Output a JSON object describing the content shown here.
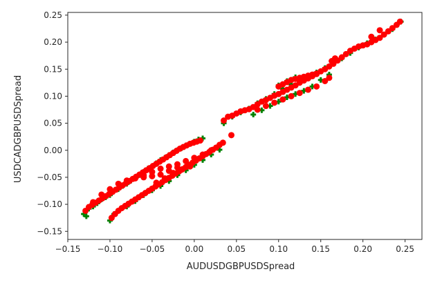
{
  "chart_data": {
    "type": "scatter",
    "title": "",
    "xlabel": "AUDUSDGBPUSDSpread",
    "ylabel": "USDCADGBPUSDSpread",
    "xlim": [
      -0.15,
      0.27
    ],
    "ylim": [
      -0.165,
      0.255
    ],
    "xticks": [
      -0.15,
      -0.1,
      -0.05,
      0.0,
      0.05,
      0.1,
      0.15,
      0.2,
      0.25
    ],
    "yticks": [
      -0.15,
      -0.1,
      -0.05,
      0.0,
      0.05,
      0.1,
      0.15,
      0.2,
      0.25
    ],
    "xtick_labels": [
      "−0.15",
      "−0.10",
      "−0.05",
      "0.00",
      "0.05",
      "0.10",
      "0.15",
      "0.20",
      "0.25"
    ],
    "ytick_labels": [
      "−0.15",
      "−0.10",
      "−0.05",
      "0.00",
      "0.05",
      "0.10",
      "0.15",
      "0.20",
      "0.25"
    ],
    "grid": false,
    "legend": "none",
    "series": [
      {
        "color": "#008000",
        "marker": "plus",
        "points": [
          [
            -0.131,
            -0.118
          ],
          [
            -0.128,
            -0.122
          ],
          [
            -0.125,
            -0.108
          ],
          [
            -0.12,
            -0.104
          ],
          [
            -0.115,
            -0.098
          ],
          [
            -0.11,
            -0.091
          ],
          [
            -0.105,
            -0.087
          ],
          [
            -0.1,
            -0.083
          ],
          [
            -0.095,
            -0.075
          ],
          [
            -0.09,
            -0.072
          ],
          [
            -0.085,
            -0.066
          ],
          [
            -0.08,
            -0.062
          ],
          [
            -0.075,
            -0.056
          ],
          [
            -0.07,
            -0.05
          ],
          [
            -0.065,
            -0.046
          ],
          [
            -0.06,
            -0.04
          ],
          [
            -0.055,
            -0.034
          ],
          [
            -0.05,
            -0.03
          ],
          [
            -0.045,
            -0.024
          ],
          [
            -0.04,
            -0.018
          ],
          [
            -0.035,
            -0.014
          ],
          [
            -0.03,
            -0.009
          ],
          [
            -0.025,
            -0.004
          ],
          [
            -0.02,
            0.0
          ],
          [
            -0.015,
            0.004
          ],
          [
            -0.01,
            0.009
          ],
          [
            -0.005,
            0.012
          ],
          [
            0.0,
            0.016
          ],
          [
            0.005,
            0.02
          ],
          [
            0.01,
            0.022
          ],
          [
            -0.1,
            -0.13
          ],
          [
            -0.095,
            -0.118
          ],
          [
            -0.09,
            -0.112
          ],
          [
            -0.08,
            -0.104
          ],
          [
            -0.07,
            -0.094
          ],
          [
            -0.06,
            -0.083
          ],
          [
            -0.05,
            -0.074
          ],
          [
            -0.04,
            -0.066
          ],
          [
            -0.03,
            -0.057
          ],
          [
            -0.02,
            -0.046
          ],
          [
            -0.01,
            -0.037
          ],
          [
            0.0,
            -0.027
          ],
          [
            0.01,
            -0.018
          ],
          [
            0.02,
            -0.008
          ],
          [
            0.03,
            0.001
          ],
          [
            0.035,
            0.05
          ],
          [
            0.045,
            0.062
          ],
          [
            0.055,
            0.07
          ],
          [
            0.065,
            0.077
          ],
          [
            0.075,
            0.087
          ],
          [
            0.085,
            0.095
          ],
          [
            0.095,
            0.104
          ],
          [
            0.105,
            0.114
          ],
          [
            0.115,
            0.122
          ],
          [
            0.125,
            0.13
          ],
          [
            0.135,
            0.138
          ],
          [
            0.145,
            0.144
          ],
          [
            0.155,
            0.152
          ],
          [
            0.165,
            0.16
          ],
          [
            0.175,
            0.17
          ],
          [
            0.185,
            0.18
          ],
          [
            0.195,
            0.19
          ],
          [
            0.205,
            0.198
          ],
          [
            0.215,
            0.205
          ],
          [
            0.225,
            0.214
          ],
          [
            0.235,
            0.224
          ],
          [
            0.245,
            0.238
          ],
          [
            0.1,
            0.12
          ],
          [
            0.11,
            0.128
          ],
          [
            0.12,
            0.135
          ],
          [
            0.07,
            0.066
          ],
          [
            0.08,
            0.074
          ],
          [
            0.09,
            0.082
          ],
          [
            0.1,
            0.09
          ],
          [
            0.11,
            0.098
          ],
          [
            0.12,
            0.104
          ],
          [
            0.13,
            0.11
          ],
          [
            0.14,
            0.118
          ],
          [
            0.15,
            0.13
          ],
          [
            0.16,
            0.14
          ]
        ]
      },
      {
        "color": "#ff0000",
        "marker": "dot",
        "points": [
          [
            -0.129,
            -0.112
          ],
          [
            -0.125,
            -0.105
          ],
          [
            -0.121,
            -0.101
          ],
          [
            -0.117,
            -0.097
          ],
          [
            -0.113,
            -0.093
          ],
          [
            -0.109,
            -0.089
          ],
          [
            -0.105,
            -0.085
          ],
          [
            -0.101,
            -0.081
          ],
          [
            -0.097,
            -0.077
          ],
          [
            -0.093,
            -0.073
          ],
          [
            -0.089,
            -0.069
          ],
          [
            -0.085,
            -0.065
          ],
          [
            -0.081,
            -0.061
          ],
          [
            -0.077,
            -0.057
          ],
          [
            -0.073,
            -0.053
          ],
          [
            -0.069,
            -0.049
          ],
          [
            -0.065,
            -0.045
          ],
          [
            -0.061,
            -0.041
          ],
          [
            -0.057,
            -0.037
          ],
          [
            -0.053,
            -0.033
          ],
          [
            -0.049,
            -0.029
          ],
          [
            -0.045,
            -0.025
          ],
          [
            -0.041,
            -0.021
          ],
          [
            -0.037,
            -0.017
          ],
          [
            -0.033,
            -0.013
          ],
          [
            -0.029,
            -0.009
          ],
          [
            -0.025,
            -0.005
          ],
          [
            -0.021,
            -0.001
          ],
          [
            -0.017,
            0.003
          ],
          [
            -0.013,
            0.006
          ],
          [
            -0.009,
            0.009
          ],
          [
            -0.005,
            0.012
          ],
          [
            -0.001,
            0.014
          ],
          [
            0.003,
            0.016
          ],
          [
            0.007,
            0.018
          ],
          [
            -0.12,
            -0.096
          ],
          [
            -0.11,
            -0.082
          ],
          [
            -0.1,
            -0.072
          ],
          [
            -0.09,
            -0.062
          ],
          [
            -0.08,
            -0.056
          ],
          [
            -0.07,
            -0.052
          ],
          [
            -0.06,
            -0.046
          ],
          [
            -0.05,
            -0.04
          ],
          [
            -0.04,
            -0.034
          ],
          [
            -0.03,
            -0.03
          ],
          [
            -0.02,
            -0.026
          ],
          [
            -0.01,
            -0.02
          ],
          [
            0.0,
            -0.014
          ],
          [
            0.01,
            -0.008
          ],
          [
            0.02,
            0.0
          ],
          [
            -0.098,
            -0.125
          ],
          [
            -0.094,
            -0.118
          ],
          [
            -0.09,
            -0.112
          ],
          [
            -0.086,
            -0.107
          ],
          [
            -0.082,
            -0.103
          ],
          [
            -0.078,
            -0.099
          ],
          [
            -0.074,
            -0.095
          ],
          [
            -0.07,
            -0.091
          ],
          [
            -0.066,
            -0.087
          ],
          [
            -0.062,
            -0.083
          ],
          [
            -0.058,
            -0.079
          ],
          [
            -0.054,
            -0.075
          ],
          [
            -0.05,
            -0.071
          ],
          [
            -0.046,
            -0.067
          ],
          [
            -0.042,
            -0.063
          ],
          [
            -0.038,
            -0.059
          ],
          [
            -0.034,
            -0.055
          ],
          [
            -0.03,
            -0.051
          ],
          [
            -0.026,
            -0.047
          ],
          [
            -0.022,
            -0.043
          ],
          [
            -0.018,
            -0.039
          ],
          [
            -0.014,
            -0.035
          ],
          [
            -0.01,
            -0.031
          ],
          [
            -0.006,
            -0.027
          ],
          [
            -0.002,
            -0.023
          ],
          [
            0.002,
            -0.019
          ],
          [
            0.006,
            -0.015
          ],
          [
            0.01,
            -0.011
          ],
          [
            0.014,
            -0.007
          ],
          [
            0.018,
            -0.003
          ],
          [
            0.022,
            0.001
          ],
          [
            0.026,
            0.005
          ],
          [
            0.03,
            0.01
          ],
          [
            0.034,
            0.014
          ],
          [
            0.044,
            0.028
          ],
          [
            -0.06,
            -0.05
          ],
          [
            -0.05,
            -0.048
          ],
          [
            -0.04,
            -0.045
          ],
          [
            -0.03,
            -0.038
          ],
          [
            -0.02,
            -0.032
          ],
          [
            -0.045,
            -0.06
          ],
          [
            -0.035,
            -0.052
          ],
          [
            -0.025,
            -0.042
          ],
          [
            -0.015,
            -0.036
          ],
          [
            -0.005,
            -0.03
          ],
          [
            0.035,
            0.055
          ],
          [
            0.04,
            0.062
          ],
          [
            0.045,
            0.064
          ],
          [
            0.05,
            0.068
          ],
          [
            0.055,
            0.072
          ],
          [
            0.06,
            0.074
          ],
          [
            0.065,
            0.076
          ],
          [
            0.07,
            0.08
          ],
          [
            0.075,
            0.085
          ],
          [
            0.08,
            0.09
          ],
          [
            0.085,
            0.093
          ],
          [
            0.09,
            0.097
          ],
          [
            0.095,
            0.101
          ],
          [
            0.1,
            0.104
          ],
          [
            0.105,
            0.108
          ],
          [
            0.11,
            0.112
          ],
          [
            0.115,
            0.116
          ],
          [
            0.12,
            0.12
          ],
          [
            0.125,
            0.125
          ],
          [
            0.13,
            0.129
          ],
          [
            0.135,
            0.133
          ],
          [
            0.14,
            0.137
          ],
          [
            0.145,
            0.141
          ],
          [
            0.15,
            0.146
          ],
          [
            0.155,
            0.15
          ],
          [
            0.16,
            0.155
          ],
          [
            0.165,
            0.16
          ],
          [
            0.17,
            0.166
          ],
          [
            0.175,
            0.172
          ],
          [
            0.18,
            0.178
          ],
          [
            0.185,
            0.184
          ],
          [
            0.19,
            0.188
          ],
          [
            0.195,
            0.192
          ],
          [
            0.2,
            0.194
          ],
          [
            0.205,
            0.196
          ],
          [
            0.21,
            0.2
          ],
          [
            0.215,
            0.204
          ],
          [
            0.22,
            0.208
          ],
          [
            0.225,
            0.214
          ],
          [
            0.23,
            0.22
          ],
          [
            0.235,
            0.226
          ],
          [
            0.24,
            0.232
          ],
          [
            0.244,
            0.238
          ],
          [
            0.21,
            0.21
          ],
          [
            0.22,
            0.222
          ],
          [
            0.1,
            0.118
          ],
          [
            0.105,
            0.122
          ],
          [
            0.11,
            0.126
          ],
          [
            0.115,
            0.13
          ],
          [
            0.12,
            0.132
          ],
          [
            0.125,
            0.134
          ],
          [
            0.13,
            0.136
          ],
          [
            0.135,
            0.138
          ],
          [
            0.14,
            0.14
          ],
          [
            0.145,
            0.142
          ],
          [
            0.075,
            0.075
          ],
          [
            0.085,
            0.082
          ],
          [
            0.095,
            0.088
          ],
          [
            0.105,
            0.094
          ],
          [
            0.115,
            0.1
          ],
          [
            0.125,
            0.106
          ],
          [
            0.135,
            0.112
          ],
          [
            0.145,
            0.118
          ],
          [
            0.155,
            0.128
          ],
          [
            0.16,
            0.134
          ],
          [
            0.163,
            0.165
          ],
          [
            0.167,
            0.17
          ]
        ]
      }
    ]
  }
}
